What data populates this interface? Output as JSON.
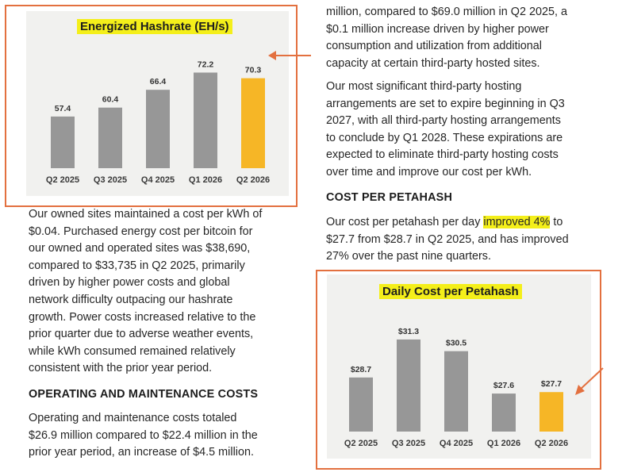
{
  "charts": [
    {
      "chart_data": {
        "type": "bar",
        "title": "Energized Hashrate (EH/s)",
        "categories": [
          "Q2 2025",
          "Q3 2025",
          "Q4 2025",
          "Q1 2026",
          "Q2 2026"
        ],
        "values": [
          57.4,
          60.4,
          66.4,
          72.2,
          70.3
        ],
        "value_labels": [
          "57.4",
          "60.4",
          "66.4",
          "72.2",
          "70.3"
        ],
        "highlight_index": 4,
        "ylim": [
          40,
          75
        ],
        "grid": false,
        "colors": {
          "bar": "#979797",
          "highlight": "#f6b626"
        }
      }
    },
    {
      "chart_data": {
        "type": "bar",
        "title": "Daily Cost per Petahash",
        "categories": [
          "Q2 2025",
          "Q3 2025",
          "Q4 2025",
          "Q1 2026",
          "Q2 2026"
        ],
        "values": [
          28.7,
          31.3,
          30.5,
          27.6,
          27.7
        ],
        "value_labels": [
          "$28.7",
          "$31.3",
          "$30.5",
          "$27.6",
          "$27.7"
        ],
        "highlight_index": 4,
        "ylim": [
          25,
          32
        ],
        "grid": false,
        "colors": {
          "bar": "#979797",
          "highlight": "#f6b626"
        }
      }
    }
  ],
  "right_col": {
    "para1": [
      "million, compared to $69.0 million in Q2 2025, a",
      "$0.1 million increase driven by higher power",
      "consumption and utilization from additional",
      "capacity at certain third-party hosted sites."
    ],
    "para2": [
      "Our most significant third-party hosting",
      "arrangements are set to expire beginning in Q3",
      "2027, with all third-party hosting arrangements",
      "to conclude by Q1 2028. These expirations are",
      "expected to eliminate third-party hosting costs",
      "over time and improve our cost per kWh."
    ],
    "heading": "COST PER PETAHASH",
    "para3_line1_pre": "Our cost per petahash per day ",
    "para3_line1_hl": "improved 4%",
    "para3_line1_post": " to",
    "para3_rest": [
      "$27.7 from $28.7 in Q2 2025, and has improved",
      "27% over the past nine quarters."
    ]
  },
  "left_col": {
    "para1": [
      "Our owned sites maintained a cost per kWh of",
      "$0.04. Purchased energy cost per bitcoin for",
      "our owned and operated sites was $38,690,",
      "compared to $33,735 in Q2 2025, primarily",
      "driven by higher power costs and global",
      "network difficulty outpacing our hashrate",
      "growth. Power costs increased relative to the",
      "prior quarter due to adverse weather events,",
      "while kWh consumed remained relatively",
      "consistent with the prior year period."
    ],
    "heading": "OPERATING AND MAINTENANCE COSTS",
    "para2": [
      "Operating and maintenance costs totaled",
      "$26.9 million compared to $22.4 million in the",
      "prior year period, an increase of $4.5 million."
    ]
  },
  "colors": {
    "callout": "#e3703f",
    "highlight": "#f4ef1a",
    "panel": "#f1f1ef"
  }
}
